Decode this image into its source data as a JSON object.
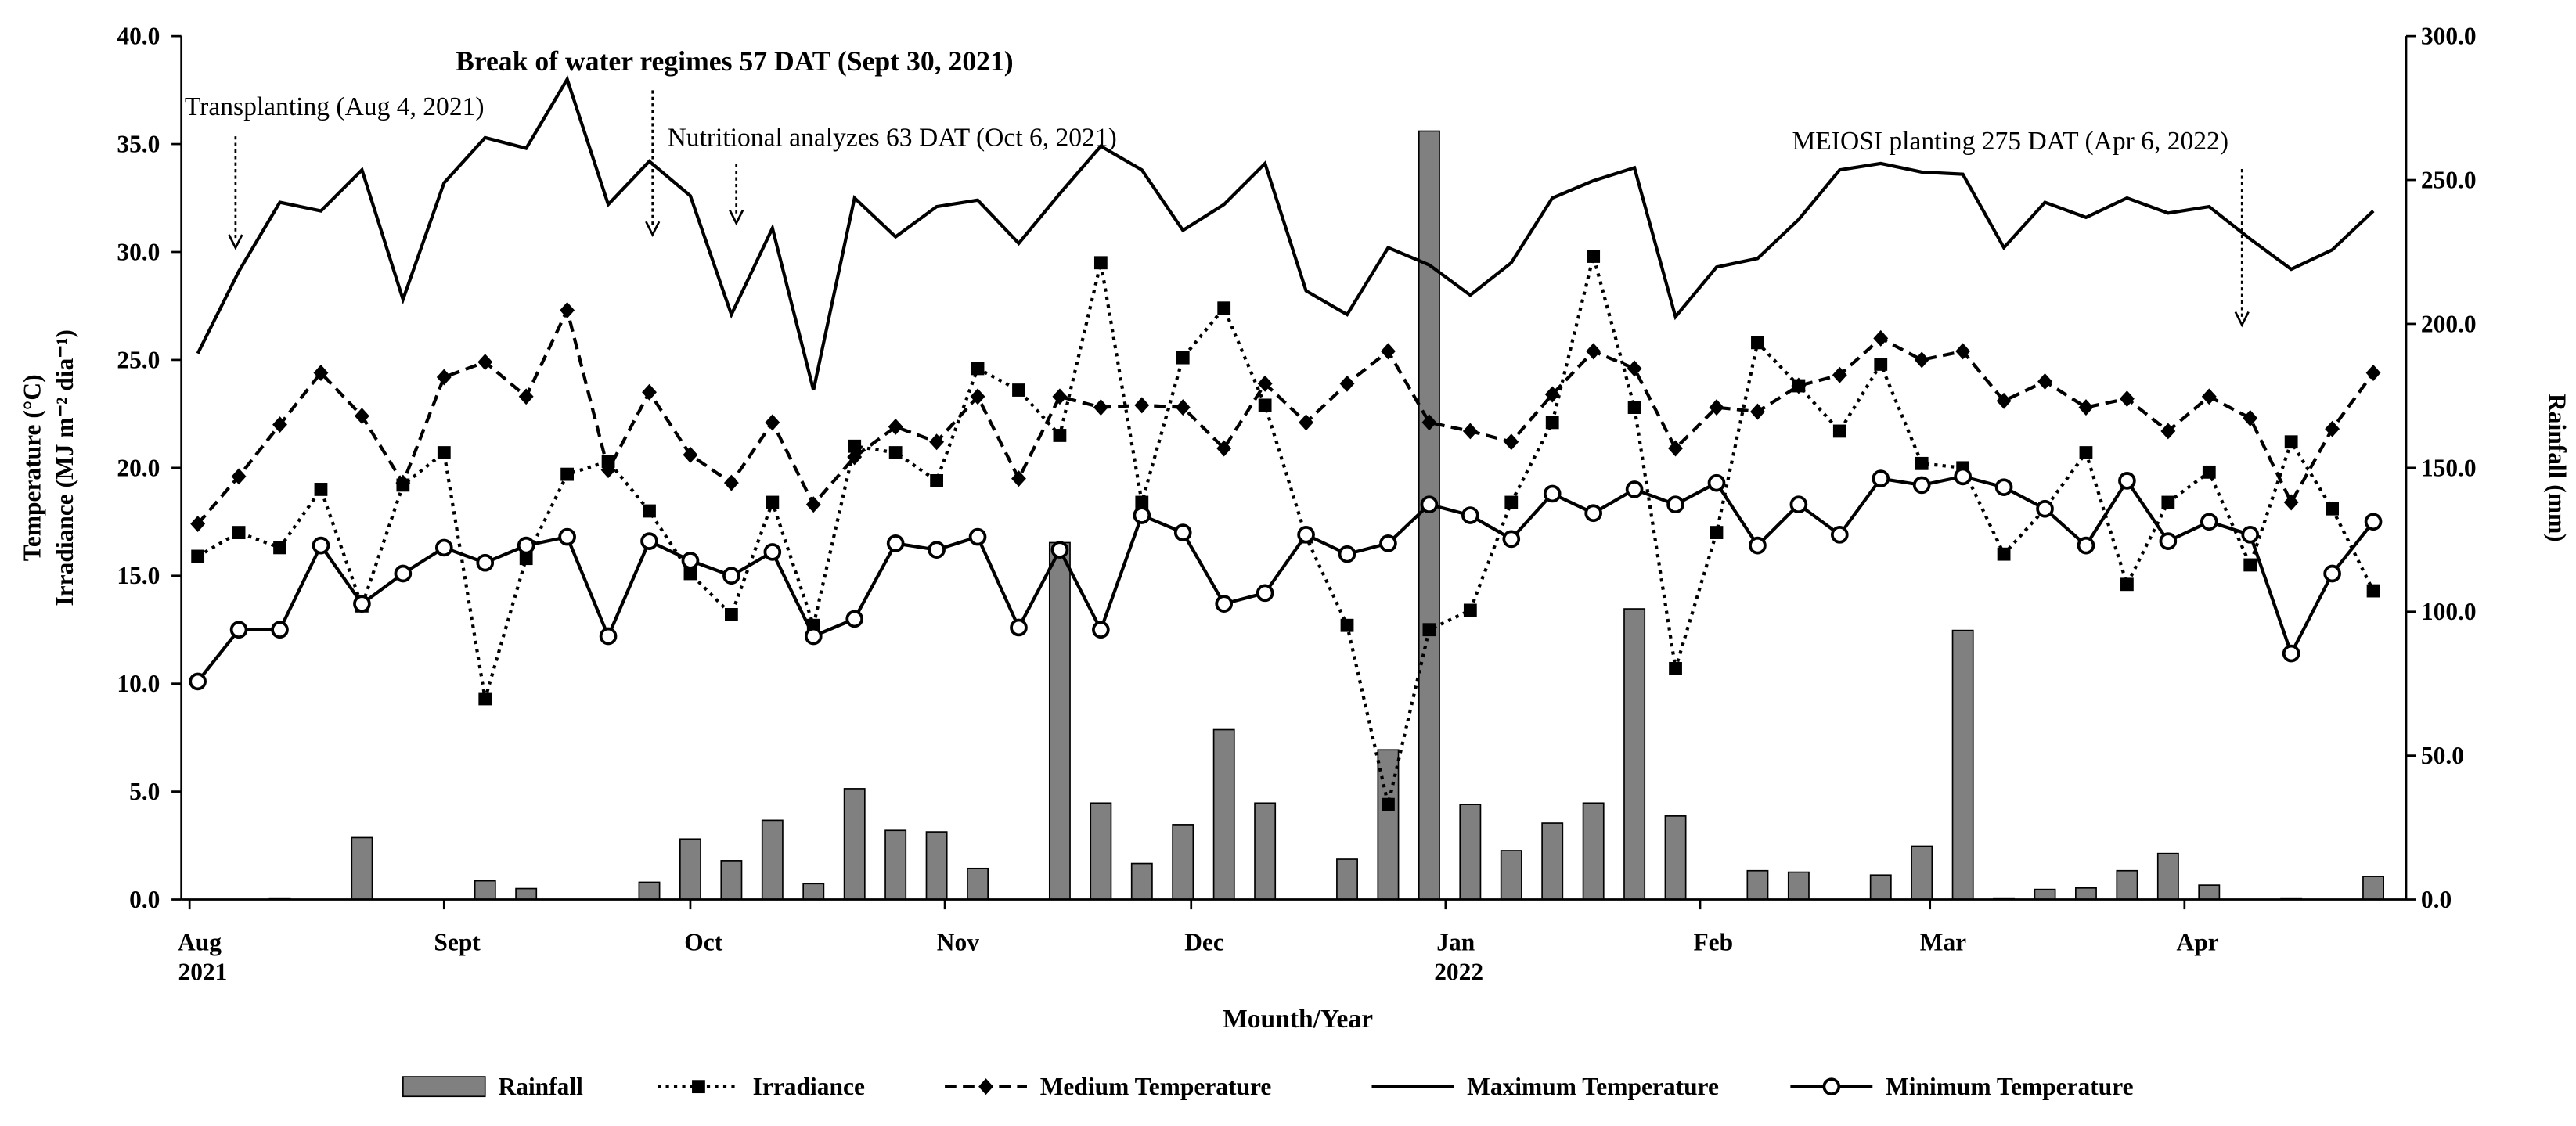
{
  "chart_data": {
    "type": "bar-line",
    "xlabel": "Mounth/Year",
    "ylabel": [
      "Temperature (°C)",
      "Irradiance (MJ m⁻² dia⁻¹)"
    ],
    "y2label": "Rainfall (mm)",
    "annotations": [
      "Transplanting (Aug 4, 2021)",
      "Break of water regimes 57 DAT (Sept 30, 2021)",
      "Nutritional analyzes 63 DAT (Oct 6, 2021)",
      "MEIOSI planting 275 DAT (Apr 6, 2022)"
    ],
    "xlim": [
      -1,
      270
    ],
    "xticks": [
      {
        "value": 0,
        "label": "Aug 2021"
      },
      {
        "value": 31,
        "label": "Sept"
      },
      {
        "value": 61,
        "label": "Oct"
      },
      {
        "value": 92,
        "label": "Nov"
      },
      {
        "value": 122,
        "label": "Dec"
      },
      {
        "value": 153,
        "label": "Jan 2022"
      },
      {
        "value": 184,
        "label": "Feb"
      },
      {
        "value": 212,
        "label": "Mar"
      },
      {
        "value": 243,
        "label": "Apr"
      }
    ],
    "ylim": [
      0,
      40
    ],
    "yticks": [
      {
        "value": 0,
        "label": "0.0"
      },
      {
        "value": 5,
        "label": "5.0"
      },
      {
        "value": 10,
        "label": "10.0"
      },
      {
        "value": 15,
        "label": "15.0"
      },
      {
        "value": 20,
        "label": "20.0"
      },
      {
        "value": 25,
        "label": "25.0"
      },
      {
        "value": 30,
        "label": "30.0"
      },
      {
        "value": 35,
        "label": "35.0"
      },
      {
        "value": 40,
        "label": "40.0"
      }
    ],
    "y2lim": [
      0,
      300
    ],
    "y2ticks": [
      {
        "value": 0,
        "label": "0.0"
      },
      {
        "value": 50,
        "label": "50.0"
      },
      {
        "value": 100,
        "label": "100.0"
      },
      {
        "value": 150,
        "label": "150.0"
      },
      {
        "value": 200,
        "label": "200.0"
      },
      {
        "value": 250,
        "label": "250.0"
      },
      {
        "value": 300,
        "label": "300.0"
      }
    ],
    "grid": false,
    "x": [
      1,
      6,
      11,
      16,
      21,
      26,
      31,
      36,
      41,
      46,
      51,
      56,
      61,
      66,
      71,
      76,
      81,
      86,
      91,
      96,
      101,
      106,
      111,
      116,
      121,
      126,
      131,
      136,
      141,
      146,
      151,
      156,
      161,
      166,
      171,
      176,
      181,
      186,
      191,
      196,
      201,
      206,
      211,
      216,
      221,
      226,
      231,
      236,
      241,
      246,
      251,
      256,
      261,
      266
    ],
    "series": [
      {
        "name": "Rainfall",
        "type": "bar",
        "axis": "y2",
        "color": "#808080",
        "values": [
          0,
          0,
          0.5,
          0,
          21.5,
          0,
          0,
          6.5,
          3.8,
          0,
          0,
          6,
          21,
          13.5,
          27.5,
          5.5,
          38.5,
          24,
          23.5,
          10.8,
          0,
          124,
          33.5,
          12.5,
          26,
          59,
          33.5,
          0,
          14,
          52,
          267,
          33,
          17,
          26.5,
          33.5,
          101,
          29,
          0,
          10,
          9.5,
          0,
          8.5,
          18.5,
          93.5,
          0.5,
          3.5,
          4,
          10,
          16,
          5,
          0,
          0.5,
          0,
          8
        ]
      },
      {
        "name": "Irradiance",
        "type": "line",
        "color": "#000000",
        "dash": "dotted",
        "marker": "square",
        "values": [
          15.9,
          17.0,
          16.3,
          19.0,
          13.6,
          19.2,
          20.7,
          9.3,
          15.8,
          19.7,
          20.3,
          18.0,
          15.1,
          13.2,
          18.4,
          12.7,
          21.0,
          20.7,
          19.4,
          24.6,
          23.6,
          21.5,
          29.5,
          18.4,
          25.1,
          27.4,
          22.9,
          16.8,
          12.7,
          4.4,
          12.5,
          13.4,
          18.4,
          22.1,
          29.8,
          22.8,
          10.7,
          17.0,
          25.8,
          23.8,
          21.7,
          24.8,
          20.2,
          20.0,
          16.0,
          18.1,
          20.7,
          14.6,
          18.4,
          19.8,
          15.5,
          21.2,
          18.1,
          14.3
        ]
      },
      {
        "name": "Medium Temperature",
        "type": "line",
        "color": "#000000",
        "dash": "dashed",
        "marker": "diamond",
        "values": [
          17.4,
          19.6,
          22.0,
          24.4,
          22.4,
          19.3,
          24.2,
          24.9,
          23.3,
          27.3,
          19.9,
          23.5,
          20.6,
          19.3,
          22.1,
          18.3,
          20.5,
          21.9,
          21.2,
          23.3,
          19.5,
          23.3,
          22.8,
          22.9,
          22.8,
          20.9,
          23.9,
          22.1,
          23.9,
          25.4,
          22.1,
          21.7,
          21.2,
          23.4,
          25.4,
          24.6,
          20.9,
          22.8,
          22.6,
          23.8,
          24.3,
          26.0,
          25.0,
          25.4,
          23.1,
          24.0,
          22.8,
          23.2,
          21.7,
          23.3,
          22.3,
          18.4,
          21.8,
          24.4
        ]
      },
      {
        "name": "Maximum Temperature",
        "type": "line",
        "color": "#000000",
        "dash": "solid",
        "marker": "none",
        "values": [
          25.3,
          29.1,
          32.3,
          31.9,
          33.8,
          27.8,
          33.2,
          35.3,
          34.8,
          38.0,
          32.2,
          34.2,
          32.6,
          27.1,
          31.1,
          23.6,
          32.5,
          30.7,
          32.1,
          32.4,
          30.4,
          32.7,
          34.9,
          33.8,
          31.0,
          32.2,
          34.1,
          28.2,
          27.1,
          30.2,
          29.4,
          28.0,
          29.5,
          32.5,
          33.3,
          33.9,
          27.0,
          29.3,
          29.7,
          31.5,
          33.8,
          34.1,
          33.7,
          33.6,
          30.2,
          32.3,
          31.6,
          32.5,
          31.8,
          32.1,
          30.6,
          29.2,
          30.1,
          31.9
        ]
      },
      {
        "name": "Minimum Temperature",
        "type": "line",
        "color": "#000000",
        "dash": "solid",
        "marker": "circle-open",
        "values": [
          10.1,
          12.5,
          12.5,
          16.4,
          13.7,
          15.1,
          16.3,
          15.6,
          16.4,
          16.8,
          12.2,
          16.6,
          15.7,
          15.0,
          16.1,
          12.2,
          13.0,
          16.5,
          16.2,
          16.8,
          12.6,
          16.2,
          12.5,
          17.8,
          17.0,
          13.7,
          14.2,
          16.9,
          16.0,
          16.5,
          18.3,
          17.8,
          16.7,
          18.8,
          17.9,
          19.0,
          18.3,
          19.3,
          16.4,
          18.3,
          16.9,
          19.5,
          19.2,
          19.6,
          19.1,
          18.1,
          16.4,
          19.4,
          16.6,
          17.5,
          16.9,
          11.4,
          15.1,
          17.5
        ]
      }
    ]
  }
}
